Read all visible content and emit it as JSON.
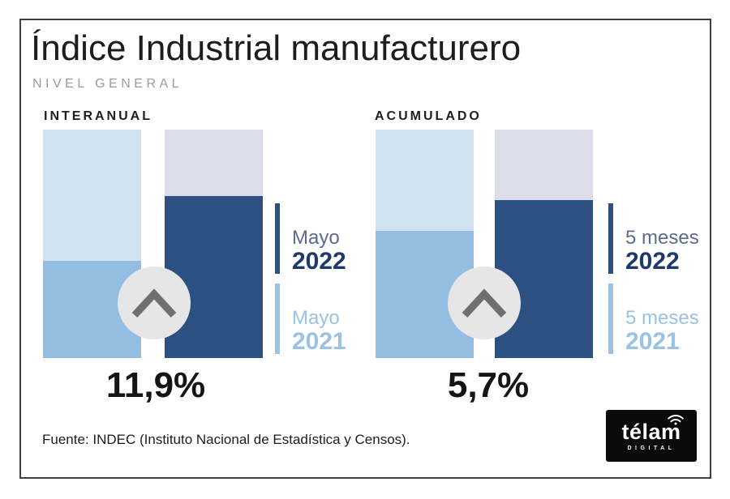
{
  "header": {
    "title": "Índice Industrial manufacturero",
    "subtitle": "NIVEL GENERAL"
  },
  "footer": {
    "source": "Fuente: INDEC (Instituto Nacional de Estadística y Censos).",
    "logo": {
      "brand": "télam",
      "sub": "DIGITAL",
      "bg": "#0b0b0b",
      "fg": "#ffffff"
    }
  },
  "colors": {
    "navy": "#2d5083",
    "mid_blue": "#94bde2",
    "light_blue": "#d0e1f0",
    "lavender": "#dcdde8",
    "legend_gray_blue": "#5b6c8d",
    "legend_navy": "#1f3a6a",
    "legend_light_blue": "#9cc2e3",
    "circle_gray": "#e6e6e6",
    "chevron_gray": "#6f6f6f"
  },
  "chart_data": [
    {
      "type": "bar",
      "title": "INTERANUAL",
      "categories": [
        "Mayo 2021",
        "Mayo 2022"
      ],
      "series": [
        {
          "name": "Altura relativa de barra (sin eje numérico)",
          "values": [
            42.5,
            70.9
          ]
        }
      ],
      "bar_track_colors": [
        "#d0e1f0",
        "#dcdde8"
      ],
      "bar_fill_colors": [
        "#94bde2",
        "#2d5083"
      ],
      "annotation": "11,9%",
      "legend": [
        {
          "line1": "Mayo",
          "line2": "2022",
          "tick": "#2d5083",
          "c1": "#5b6c8d",
          "c2": "#1f3a6a"
        },
        {
          "line1": "Mayo",
          "line2": "2021",
          "tick": "#9cc2e3",
          "c1": "#9cc2e3",
          "c2": "#9cc2e3"
        }
      ],
      "legend_position": "right",
      "xlabel": "",
      "ylabel": "",
      "grid": false
    },
    {
      "type": "bar",
      "title": "ACUMULADO",
      "categories": [
        "5 meses 2021",
        "5 meses 2022"
      ],
      "series": [
        {
          "name": "Altura relativa de barra (sin eje numérico)",
          "values": [
            55.7,
            69.1
          ]
        }
      ],
      "bar_track_colors": [
        "#d0e1f0",
        "#dcdde8"
      ],
      "bar_fill_colors": [
        "#94bde2",
        "#2d5083"
      ],
      "annotation": "5,7%",
      "legend": [
        {
          "line1": "5 meses",
          "line2": "2022",
          "tick": "#2d5083",
          "c1": "#5b6c8d",
          "c2": "#1f3a6a"
        },
        {
          "line1": "5 meses",
          "line2": "2021",
          "tick": "#9cc2e3",
          "c1": "#9cc2e3",
          "c2": "#9cc2e3"
        }
      ],
      "legend_position": "right",
      "xlabel": "",
      "ylabel": "",
      "grid": false
    }
  ]
}
